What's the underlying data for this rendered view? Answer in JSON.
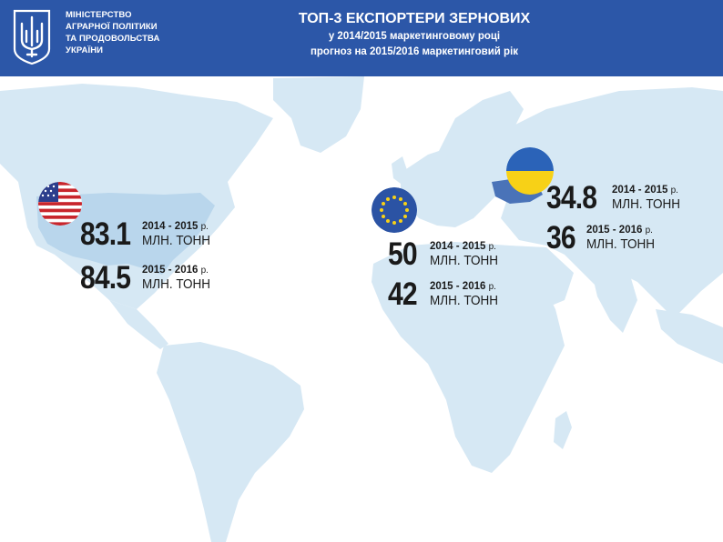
{
  "header": {
    "ministry_lines": [
      "МІНІСТЕРСТВО",
      "АГРАРНОЇ ПОЛІТИКИ",
      "ТА ПРОДОВОЛЬСТВА",
      "УКРАЇНИ"
    ],
    "title": "ТОП-3 ЕКСПОРТЕРИ ЗЕРНОВИХ",
    "subtitle_1": "у 2014/2015 маркетинговому році",
    "subtitle_2": "прогноз на 2015/2016 маркетинговий рік"
  },
  "colors": {
    "header_bg": "#2c57a8",
    "land": "#d6e8f4",
    "us_land": "#b9d6ec",
    "flag_blue": "#2b53a4",
    "flag_yellow": "#f7d117"
  },
  "exporters": [
    {
      "country": "USA",
      "flag": "us-flag-icon",
      "rows": [
        {
          "value": "83.1",
          "period": "2014 - 2015",
          "suffix": "р.",
          "unit": "МЛН. ТОНН"
        },
        {
          "value": "84.5",
          "period": "2015 - 2016",
          "suffix": "р.",
          "unit": "МЛН. ТОНН"
        }
      ]
    },
    {
      "country": "EU",
      "flag": "eu-flag-icon",
      "rows": [
        {
          "value": "50",
          "period": "2014 - 2015",
          "suffix": "р.",
          "unit": "МЛН. ТОНН"
        },
        {
          "value": "42",
          "period": "2015 - 2016",
          "suffix": "р.",
          "unit": "МЛН. ТОНН"
        }
      ]
    },
    {
      "country": "Ukraine",
      "flag": "ukraine-flag-icon",
      "rows": [
        {
          "value": "34.8",
          "period": "2014 - 2015",
          "suffix": "р.",
          "unit": "МЛН. ТОНН"
        },
        {
          "value": "36",
          "period": "2015 - 2016",
          "suffix": "р.",
          "unit": "МЛН. ТОНН"
        }
      ]
    }
  ]
}
